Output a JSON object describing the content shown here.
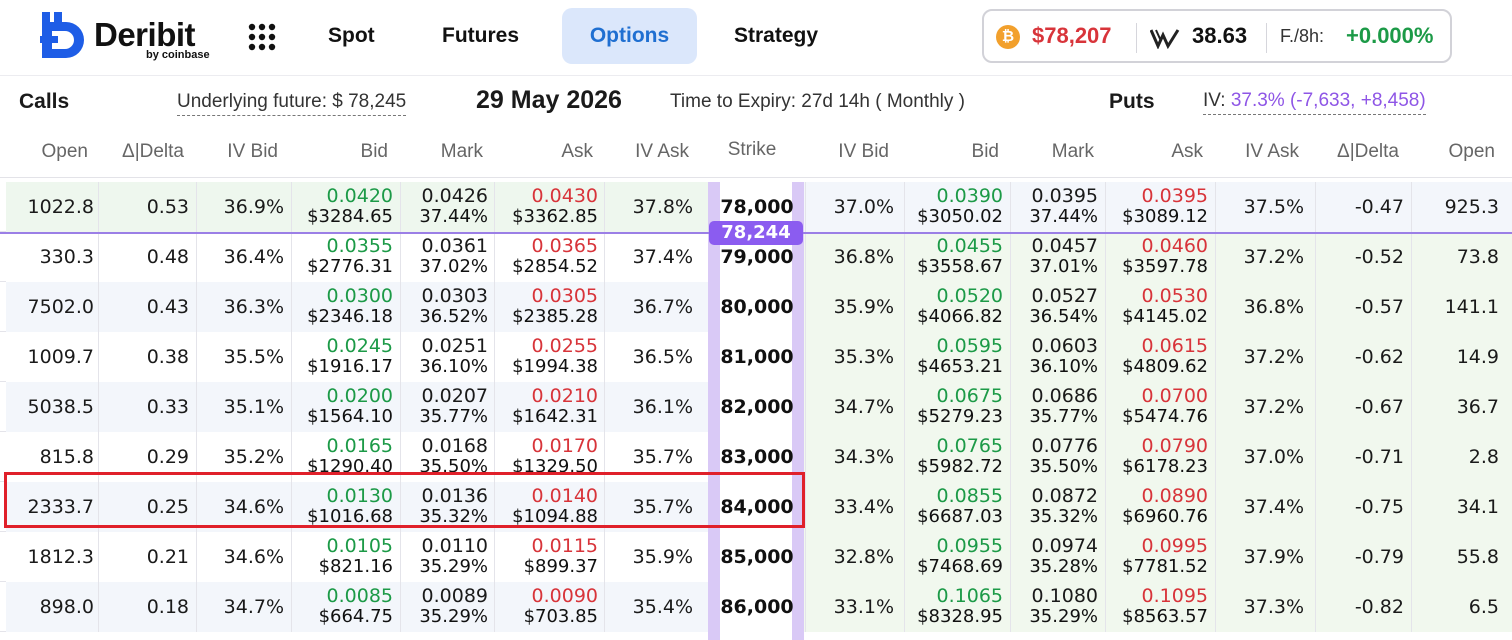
{
  "brand": {
    "name": "Deribit",
    "sub": "by coinbase"
  },
  "nav": {
    "items": [
      "Spot",
      "Futures",
      "Options",
      "Strategy"
    ],
    "active": "Options"
  },
  "ticker": {
    "btc_price": "$78,207",
    "dvol": "38.63",
    "funding_label": "F./8h:",
    "funding_value": "+0.000%"
  },
  "info": {
    "calls": "Calls",
    "underlying": "Underlying future:  $ 78,245",
    "date": "29 May 2026",
    "time_to_expiry": "Time to Expiry: 27d 14h ( Monthly )",
    "puts": "Puts",
    "iv_label": "IV:",
    "iv_value": "37.3% (-7,633, +8,458)"
  },
  "columns": [
    "Open",
    "Δ|Delta",
    "IV Bid",
    "Bid",
    "Mark",
    "Ask",
    "IV Ask",
    "Strike",
    "IV Bid",
    "Bid",
    "Mark",
    "Ask",
    "IV Ask",
    "Δ|Delta",
    "Open"
  ],
  "underlying_badge": "78,244",
  "rows": [
    {
      "strike": "78,000",
      "call": {
        "open": "1022.8",
        "delta": "0.53",
        "iv_bid": "36.9%",
        "bid": "0.0420",
        "bid_usd": "$3284.65",
        "mark": "0.0426",
        "mark_iv": "37.44%",
        "ask": "0.0430",
        "ask_usd": "$3362.85",
        "iv_ask": "37.8%"
      },
      "put": {
        "iv_bid": "37.0%",
        "bid": "0.0390",
        "bid_usd": "$3050.02",
        "mark": "0.0395",
        "mark_iv": "37.44%",
        "ask": "0.0395",
        "ask_usd": "$3089.12",
        "iv_ask": "37.5%",
        "delta": "-0.47",
        "open": "925.3"
      }
    },
    {
      "strike": "79,000",
      "call": {
        "open": "330.3",
        "delta": "0.48",
        "iv_bid": "36.4%",
        "bid": "0.0355",
        "bid_usd": "$2776.31",
        "mark": "0.0361",
        "mark_iv": "37.02%",
        "ask": "0.0365",
        "ask_usd": "$2854.52",
        "iv_ask": "37.4%"
      },
      "put": {
        "iv_bid": "36.8%",
        "bid": "0.0455",
        "bid_usd": "$3558.67",
        "mark": "0.0457",
        "mark_iv": "37.01%",
        "ask": "0.0460",
        "ask_usd": "$3597.78",
        "iv_ask": "37.2%",
        "delta": "-0.52",
        "open": "73.8"
      }
    },
    {
      "strike": "80,000",
      "call": {
        "open": "7502.0",
        "delta": "0.43",
        "iv_bid": "36.3%",
        "bid": "0.0300",
        "bid_usd": "$2346.18",
        "mark": "0.0303",
        "mark_iv": "36.52%",
        "ask": "0.0305",
        "ask_usd": "$2385.28",
        "iv_ask": "36.7%"
      },
      "put": {
        "iv_bid": "35.9%",
        "bid": "0.0520",
        "bid_usd": "$4066.82",
        "mark": "0.0527",
        "mark_iv": "36.54%",
        "ask": "0.0530",
        "ask_usd": "$4145.02",
        "iv_ask": "36.8%",
        "delta": "-0.57",
        "open": "141.1"
      }
    },
    {
      "strike": "81,000",
      "call": {
        "open": "1009.7",
        "delta": "0.38",
        "iv_bid": "35.5%",
        "bid": "0.0245",
        "bid_usd": "$1916.17",
        "mark": "0.0251",
        "mark_iv": "36.10%",
        "ask": "0.0255",
        "ask_usd": "$1994.38",
        "iv_ask": "36.5%"
      },
      "put": {
        "iv_bid": "35.3%",
        "bid": "0.0595",
        "bid_usd": "$4653.21",
        "mark": "0.0603",
        "mark_iv": "36.10%",
        "ask": "0.0615",
        "ask_usd": "$4809.62",
        "iv_ask": "37.2%",
        "delta": "-0.62",
        "open": "14.9"
      }
    },
    {
      "strike": "82,000",
      "call": {
        "open": "5038.5",
        "delta": "0.33",
        "iv_bid": "35.1%",
        "bid": "0.0200",
        "bid_usd": "$1564.10",
        "mark": "0.0207",
        "mark_iv": "35.77%",
        "ask": "0.0210",
        "ask_usd": "$1642.31",
        "iv_ask": "36.1%"
      },
      "put": {
        "iv_bid": "34.7%",
        "bid": "0.0675",
        "bid_usd": "$5279.23",
        "mark": "0.0686",
        "mark_iv": "35.77%",
        "ask": "0.0700",
        "ask_usd": "$5474.76",
        "iv_ask": "37.2%",
        "delta": "-0.67",
        "open": "36.7"
      }
    },
    {
      "strike": "83,000",
      "call": {
        "open": "815.8",
        "delta": "0.29",
        "iv_bid": "35.2%",
        "bid": "0.0165",
        "bid_usd": "$1290.40",
        "mark": "0.0168",
        "mark_iv": "35.50%",
        "ask": "0.0170",
        "ask_usd": "$1329.50",
        "iv_ask": "35.7%"
      },
      "put": {
        "iv_bid": "34.3%",
        "bid": "0.0765",
        "bid_usd": "$5982.72",
        "mark": "0.0776",
        "mark_iv": "35.50%",
        "ask": "0.0790",
        "ask_usd": "$6178.23",
        "iv_ask": "37.0%",
        "delta": "-0.71",
        "open": "2.8"
      }
    },
    {
      "strike": "84,000",
      "call": {
        "open": "2333.7",
        "delta": "0.25",
        "iv_bid": "34.6%",
        "bid": "0.0130",
        "bid_usd": "$1016.68",
        "mark": "0.0136",
        "mark_iv": "35.32%",
        "ask": "0.0140",
        "ask_usd": "$1094.88",
        "iv_ask": "35.7%"
      },
      "put": {
        "iv_bid": "33.4%",
        "bid": "0.0855",
        "bid_usd": "$6687.03",
        "mark": "0.0872",
        "mark_iv": "35.32%",
        "ask": "0.0890",
        "ask_usd": "$6960.76",
        "iv_ask": "37.4%",
        "delta": "-0.75",
        "open": "34.1"
      }
    },
    {
      "strike": "85,000",
      "call": {
        "open": "1812.3",
        "delta": "0.21",
        "iv_bid": "34.6%",
        "bid": "0.0105",
        "bid_usd": "$821.16",
        "mark": "0.0110",
        "mark_iv": "35.29%",
        "ask": "0.0115",
        "ask_usd": "$899.37",
        "iv_ask": "35.9%"
      },
      "put": {
        "iv_bid": "32.8%",
        "bid": "0.0955",
        "bid_usd": "$7468.69",
        "mark": "0.0974",
        "mark_iv": "35.28%",
        "ask": "0.0995",
        "ask_usd": "$7781.52",
        "iv_ask": "37.9%",
        "delta": "-0.79",
        "open": "55.8"
      }
    },
    {
      "strike": "86,000",
      "call": {
        "open": "898.0",
        "delta": "0.18",
        "iv_bid": "34.7%",
        "bid": "0.0085",
        "bid_usd": "$664.75",
        "mark": "0.0089",
        "mark_iv": "35.29%",
        "ask": "0.0090",
        "ask_usd": "$703.85",
        "iv_ask": "35.4%"
      },
      "put": {
        "iv_bid": "33.1%",
        "bid": "0.1065",
        "bid_usd": "$8328.95",
        "mark": "0.1080",
        "mark_iv": "35.29%",
        "ask": "0.1095",
        "ask_usd": "$8563.57",
        "iv_ask": "37.3%",
        "delta": "-0.82",
        "open": "6.5"
      }
    }
  ],
  "colors": {
    "bid_green": "#1c9a47",
    "ask_red": "#d8343a",
    "accent_blue": "#1f6fd1",
    "underlying_purple": "#8b5cf0"
  }
}
